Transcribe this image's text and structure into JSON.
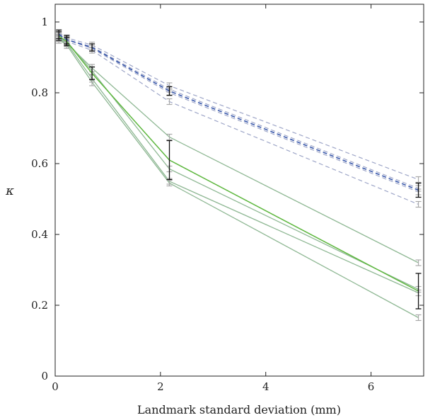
{
  "chart_data": {
    "type": "line",
    "title": "",
    "xlabel": "Landmark standard deviation (mm)",
    "ylabel": "κ",
    "xlim": [
      0,
      7
    ],
    "ylim": [
      0,
      1.05
    ],
    "x_ticks": [
      0,
      2,
      4,
      6
    ],
    "y_ticks": [
      0,
      0.2,
      0.4,
      0.6,
      0.8,
      1
    ],
    "x_tick_labels": [
      "0",
      "2",
      "4",
      "6"
    ],
    "y_tick_labels": [
      "0",
      "0.2",
      "0.4",
      "0.6",
      "0.8",
      "1"
    ],
    "grid": false,
    "x": [
      0.07,
      0.22,
      0.7,
      2.17,
      6.9
    ],
    "colors": {
      "green_main": "#5fb840",
      "green_light": "#8fb894",
      "blue_main": "#2e4fa6",
      "blue_light": "#9ea6c8",
      "err_main": "#111111",
      "err_light": "#a9a9a9"
    },
    "series": [
      {
        "style": "green-light",
        "values": [
          0.955,
          0.94,
          0.87,
          0.675,
          0.32
        ],
        "err": [
          0.01,
          0.01,
          0.01,
          0.008,
          0.008
        ]
      },
      {
        "style": "green-light",
        "values": [
          0.955,
          0.945,
          0.862,
          0.585,
          0.245
        ],
        "err": [
          0.01,
          0.01,
          0.01,
          0.008,
          0.008
        ]
      },
      {
        "style": "green-light",
        "values": [
          0.95,
          0.94,
          0.84,
          0.55,
          0.235
        ],
        "err": [
          0.01,
          0.01,
          0.01,
          0.008,
          0.008
        ]
      },
      {
        "style": "green-light",
        "values": [
          0.95,
          0.935,
          0.83,
          0.545,
          0.165
        ],
        "err": [
          0.01,
          0.01,
          0.01,
          0.008,
          0.008
        ]
      },
      {
        "style": "green-main",
        "values": [
          0.96,
          0.945,
          0.855,
          0.61,
          0.24
        ],
        "err": [
          0.012,
          0.012,
          0.018,
          0.055,
          0.05
        ]
      },
      {
        "style": "blue-light",
        "values": [
          0.97,
          0.955,
          0.935,
          0.82,
          0.555
        ],
        "err": [
          0.008,
          0.008,
          0.008,
          0.008,
          0.008
        ]
      },
      {
        "style": "blue-light",
        "values": [
          0.965,
          0.95,
          0.93,
          0.81,
          0.53
        ],
        "err": [
          0.008,
          0.008,
          0.008,
          0.008,
          0.008
        ]
      },
      {
        "style": "blue-light",
        "values": [
          0.96,
          0.95,
          0.925,
          0.8,
          0.52
        ],
        "err": [
          0.008,
          0.008,
          0.008,
          0.008,
          0.008
        ]
      },
      {
        "style": "blue-light",
        "values": [
          0.955,
          0.945,
          0.92,
          0.775,
          0.485
        ],
        "err": [
          0.008,
          0.008,
          0.008,
          0.008,
          0.008
        ]
      },
      {
        "style": "blue-main",
        "values": [
          0.965,
          0.95,
          0.928,
          0.805,
          0.525
        ],
        "err": [
          0.012,
          0.012,
          0.01,
          0.012,
          0.02
        ]
      }
    ]
  }
}
